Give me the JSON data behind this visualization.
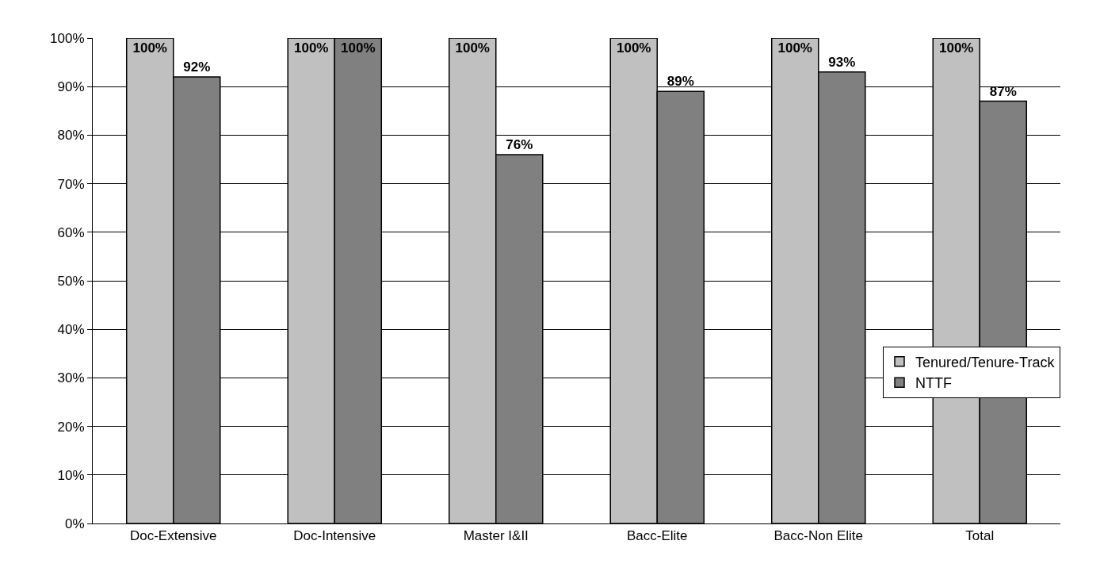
{
  "chart_data": {
    "type": "bar",
    "categories": [
      "Doc-Extensive",
      "Doc-Intensive",
      "Master I&II",
      "Bacc-Elite",
      "Bacc-Non Elite",
      "Total"
    ],
    "series": [
      {
        "name": "Tenured/Tenure-Track",
        "color": "#c0c0c0",
        "values": [
          100,
          100,
          100,
          100,
          100,
          100
        ],
        "value_labels": [
          "100%",
          "100%",
          "100%",
          "100%",
          "100%",
          "100%"
        ]
      },
      {
        "name": "NTTF",
        "color": "#808080",
        "values": [
          92,
          100,
          76,
          89,
          93,
          87
        ],
        "value_labels": [
          "92%",
          "100%",
          "76%",
          "89%",
          "93%",
          "87%"
        ]
      }
    ],
    "ylim": [
      0,
      100
    ],
    "yticks": [
      {
        "value": 0,
        "label": "0%"
      },
      {
        "value": 10,
        "label": "10%"
      },
      {
        "value": 20,
        "label": "20%"
      },
      {
        "value": 30,
        "label": "30%"
      },
      {
        "value": 40,
        "label": "40%"
      },
      {
        "value": 50,
        "label": "50%"
      },
      {
        "value": 60,
        "label": "60%"
      },
      {
        "value": 70,
        "label": "70%"
      },
      {
        "value": 80,
        "label": "80%"
      },
      {
        "value": 90,
        "label": "90%"
      },
      {
        "value": 100,
        "label": "100%"
      }
    ],
    "grid": "y",
    "legend": "right"
  }
}
